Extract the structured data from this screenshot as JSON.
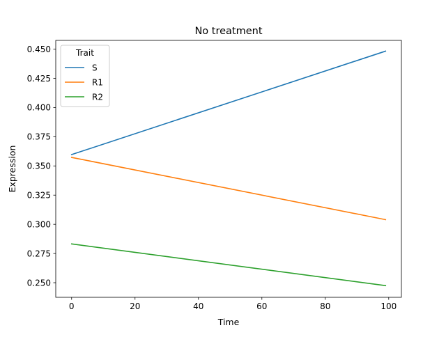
{
  "chart_data": {
    "type": "line",
    "title": "No treatment",
    "xlabel": "Time",
    "ylabel": "Expression",
    "xlim": [
      -5,
      104
    ],
    "ylim": [
      0.2375,
      0.4575
    ],
    "xticks": [
      0,
      20,
      40,
      60,
      80,
      100
    ],
    "yticks": [
      0.25,
      0.275,
      0.3,
      0.325,
      0.35,
      0.375,
      0.4,
      0.425,
      0.45
    ],
    "ytick_labels": [
      "0.250",
      "0.275",
      "0.300",
      "0.325",
      "0.350",
      "0.375",
      "0.400",
      "0.425",
      "0.450"
    ],
    "grid": false,
    "legend": {
      "title": "Trait",
      "placement": "top-left"
    },
    "series": [
      {
        "name": "S",
        "color": "#1f77b4",
        "x": [
          0,
          99
        ],
        "y": [
          0.3597,
          0.4483
        ]
      },
      {
        "name": "R1",
        "color": "#ff7f0e",
        "x": [
          0,
          99
        ],
        "y": [
          0.3573,
          0.304
        ]
      },
      {
        "name": "R2",
        "color": "#2ca02c",
        "x": [
          0,
          99
        ],
        "y": [
          0.2832,
          0.2475
        ]
      }
    ]
  }
}
